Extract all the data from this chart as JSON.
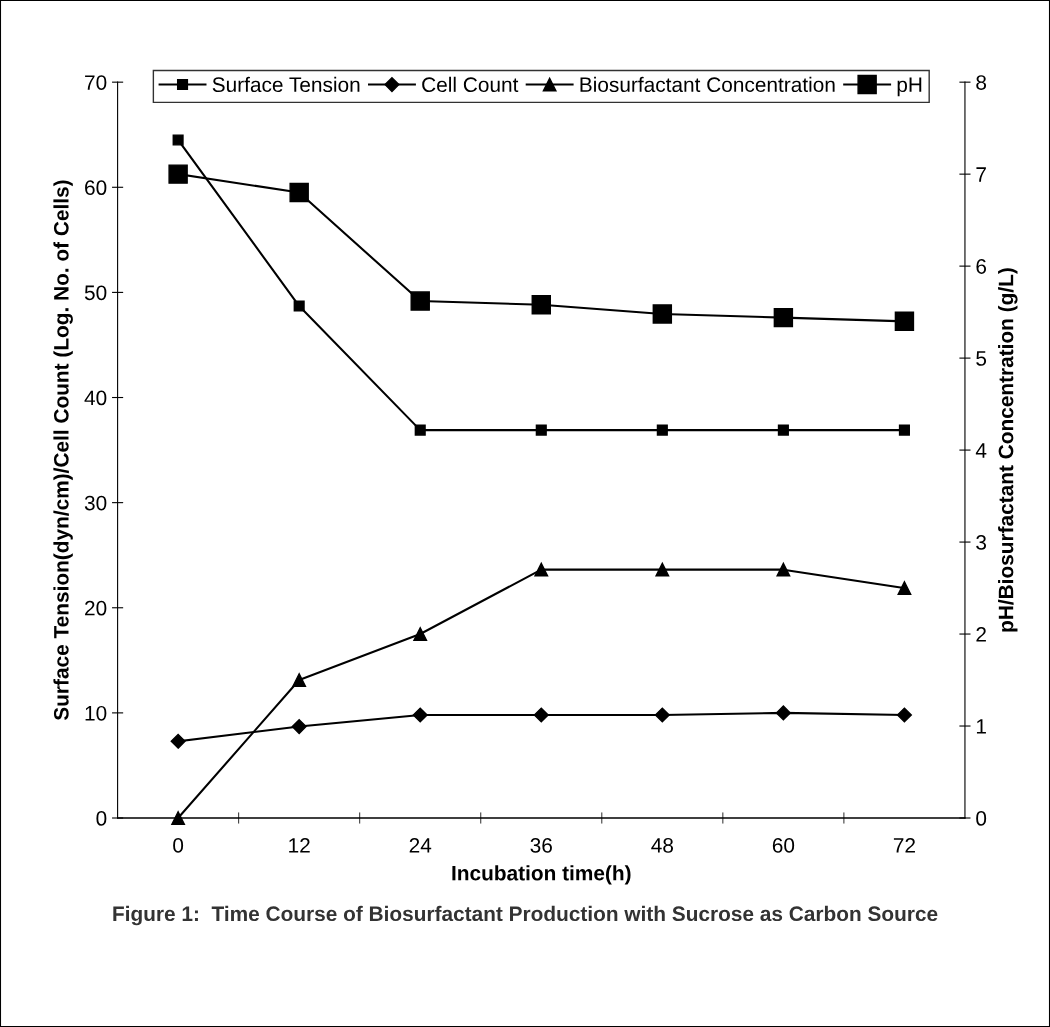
{
  "chart_data": {
    "type": "line",
    "categories": [
      "0",
      "12",
      "24",
      "36",
      "48",
      "60",
      "72"
    ],
    "xlabel": "Incubation time(h)",
    "ylabel": "Surface Tension(dyn/cm)/Cell Count (Log. No. of Cells)",
    "y2label": "pH/Biosurfactant Concentration (g/L)",
    "ylim": [
      0,
      70
    ],
    "yticks": [
      0,
      10,
      20,
      30,
      40,
      50,
      60,
      70
    ],
    "y2lim": [
      0,
      8
    ],
    "y2ticks": [
      0,
      1,
      2,
      3,
      4,
      5,
      6,
      7,
      8
    ],
    "series": [
      {
        "name": "Surface Tension",
        "color": "#000000",
        "marker": "square",
        "values": [
          64.5,
          48.7,
          36.9,
          36.9,
          36.9,
          36.9,
          36.9
        ]
      },
      {
        "name": "Cell Count",
        "color": "#000000",
        "marker": "diamond",
        "values": [
          7.3,
          8.7,
          9.8,
          9.8,
          9.8,
          10.0,
          9.8
        ]
      },
      {
        "name": "Biosurfactant Concentration",
        "color": "#000000",
        "marker": "triangle",
        "axis": "y2",
        "values": [
          0,
          1.5,
          2.0,
          2.7,
          2.7,
          2.7,
          2.5
        ]
      },
      {
        "name": "pH",
        "color": "#000000",
        "marker": "square",
        "axis": "y2",
        "values": [
          7.0,
          6.8,
          5.62,
          5.58,
          5.48,
          5.44,
          5.4
        ]
      }
    ],
    "legend": "top",
    "grid": false,
    "line_style": "solid",
    "annotations": [
      "Figure 1:  Time Course of Biosurfactant Production with Sucrose as Carbon Source"
    ]
  }
}
